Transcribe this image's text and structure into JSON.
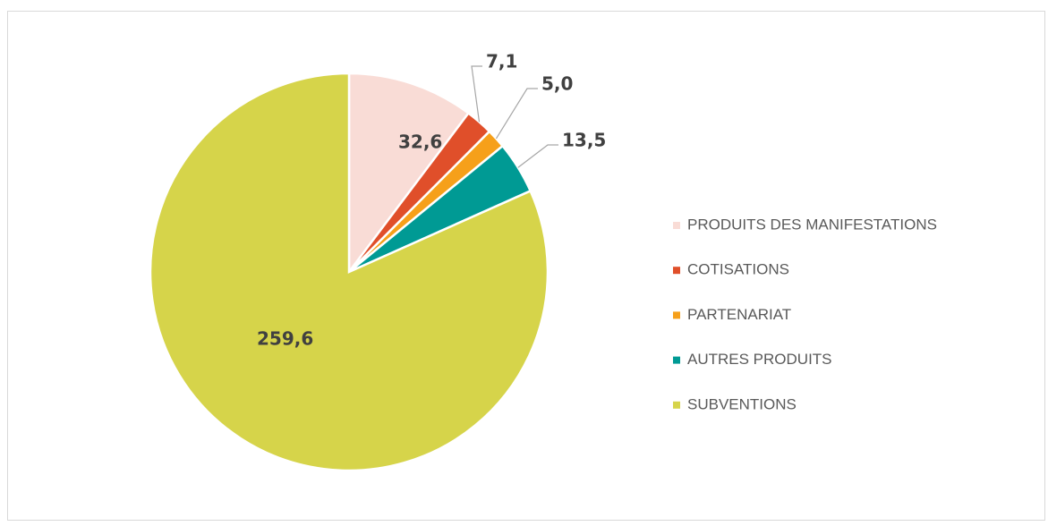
{
  "chart_data": {
    "type": "pie",
    "categories": [
      "PRODUITS DES MANIFESTATIONS",
      "COTISATIONS",
      "PARTENARIAT",
      "AUTRES PRODUITS",
      "SUBVENTIONS"
    ],
    "values": [
      32.6,
      7.1,
      5.0,
      13.5,
      259.6
    ],
    "value_labels": [
      "32,6",
      "7,1",
      "5,0",
      "13,5",
      "259,6"
    ],
    "colors": [
      "#f9dcd6",
      "#e04f2a",
      "#f6a01a",
      "#009a94",
      "#d6d44a"
    ],
    "legend": "right"
  }
}
